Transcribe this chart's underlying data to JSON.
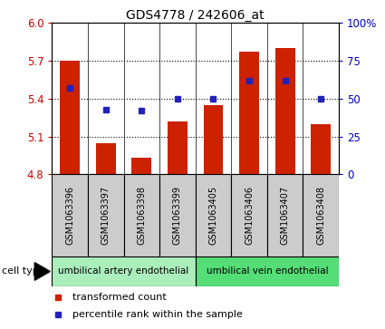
{
  "title": "GDS4778 / 242606_at",
  "samples": [
    "GSM1063396",
    "GSM1063397",
    "GSM1063398",
    "GSM1063399",
    "GSM1063405",
    "GSM1063406",
    "GSM1063407",
    "GSM1063408"
  ],
  "transformed_counts": [
    5.7,
    5.05,
    4.93,
    5.22,
    5.35,
    5.77,
    5.8,
    5.2
  ],
  "percentile_ranks": [
    57,
    43,
    42,
    50,
    50,
    62,
    62,
    50
  ],
  "ylim_left": [
    4.8,
    6.0
  ],
  "yticks_left": [
    4.8,
    5.1,
    5.4,
    5.7,
    6.0
  ],
  "ylim_right": [
    0,
    100
  ],
  "yticks_right": [
    0,
    25,
    50,
    75,
    100
  ],
  "ytick_right_labels": [
    "0",
    "25",
    "50",
    "75",
    "100%"
  ],
  "bar_color": "#cc2200",
  "dot_color": "#2222bb",
  "bar_bottom": 4.8,
  "cell_type_groups": [
    {
      "label": "umbilical artery endothelial",
      "indices": [
        0,
        1,
        2,
        3
      ],
      "color": "#aaeebb"
    },
    {
      "label": "umbilical vein endothelial",
      "indices": [
        4,
        5,
        6,
        7
      ],
      "color": "#55dd77"
    }
  ],
  "legend_items": [
    {
      "label": "transformed count",
      "color": "#cc2200"
    },
    {
      "label": "percentile rank within the sample",
      "color": "#2222bb"
    }
  ],
  "cell_type_label": "cell type",
  "label_color_left": "#cc0000",
  "label_color_right": "#0000cc",
  "sample_box_color": "#cccccc",
  "gridline_color": "#555555",
  "hline_y": [
    5.1,
    5.4,
    5.7
  ]
}
